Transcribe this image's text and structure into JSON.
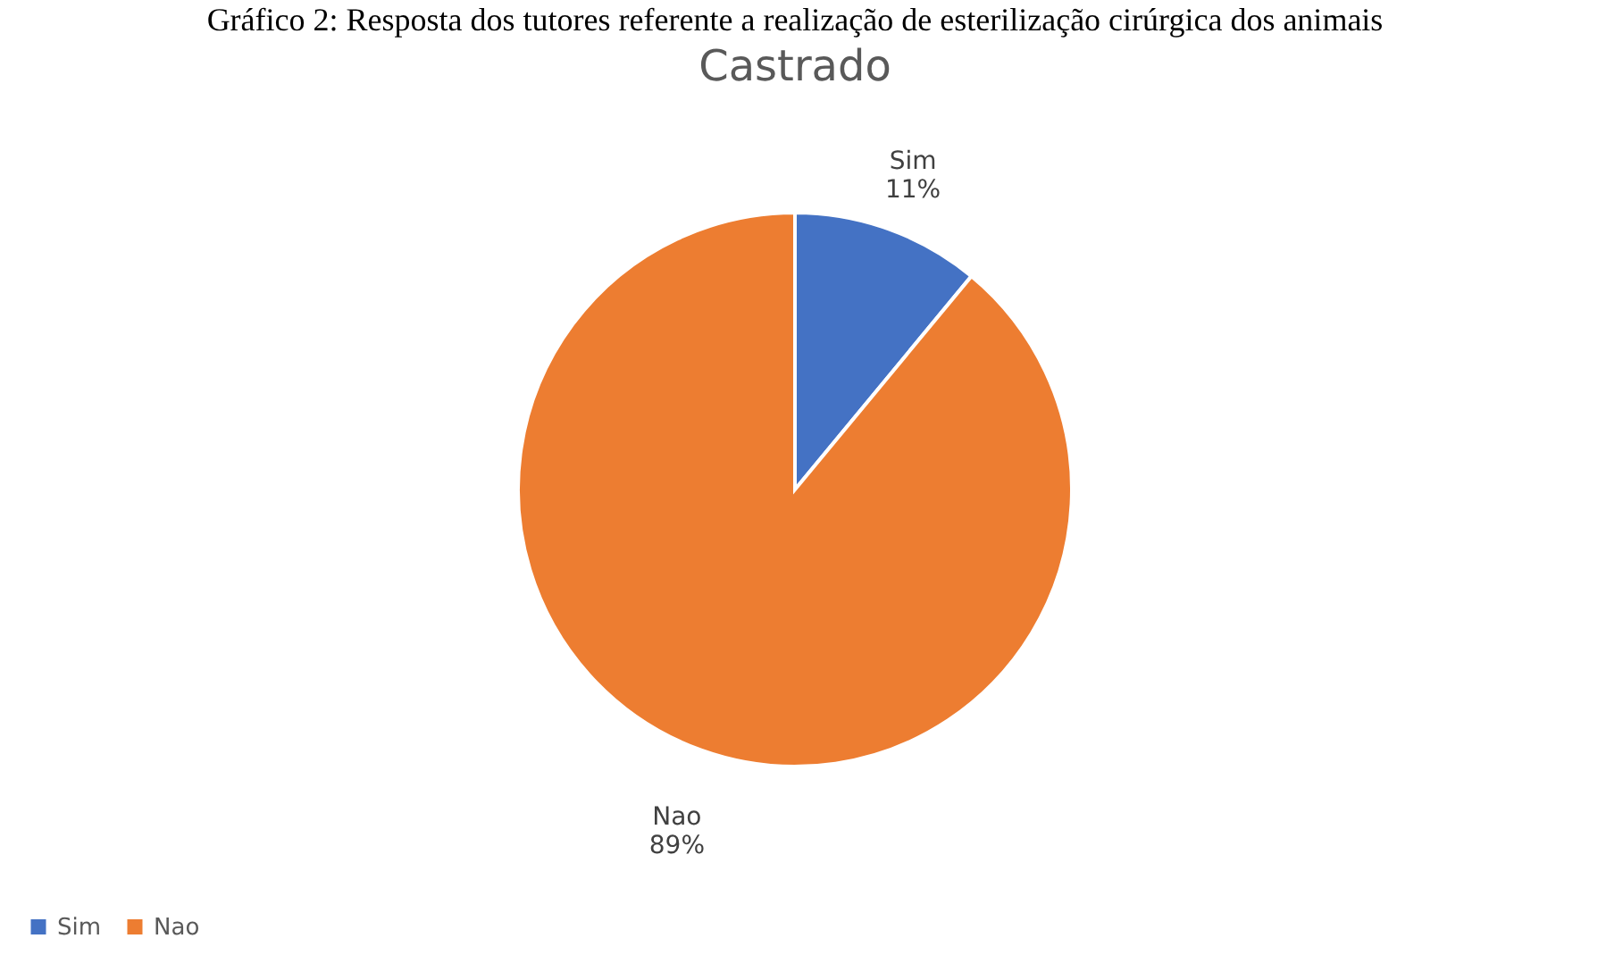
{
  "chart_data": {
    "type": "pie",
    "title": "Castrado",
    "annotations": [
      "Gráfico 2: Resposta dos tutores referente a realização de esterilização cirúrgica dos animais"
    ],
    "categories": [
      "Sim",
      "Nao"
    ],
    "values": [
      11,
      89
    ],
    "colors": [
      "#4472c4",
      "#ed7d31"
    ],
    "value_labels": [
      "11%",
      "89%"
    ],
    "legend": "bottom"
  }
}
